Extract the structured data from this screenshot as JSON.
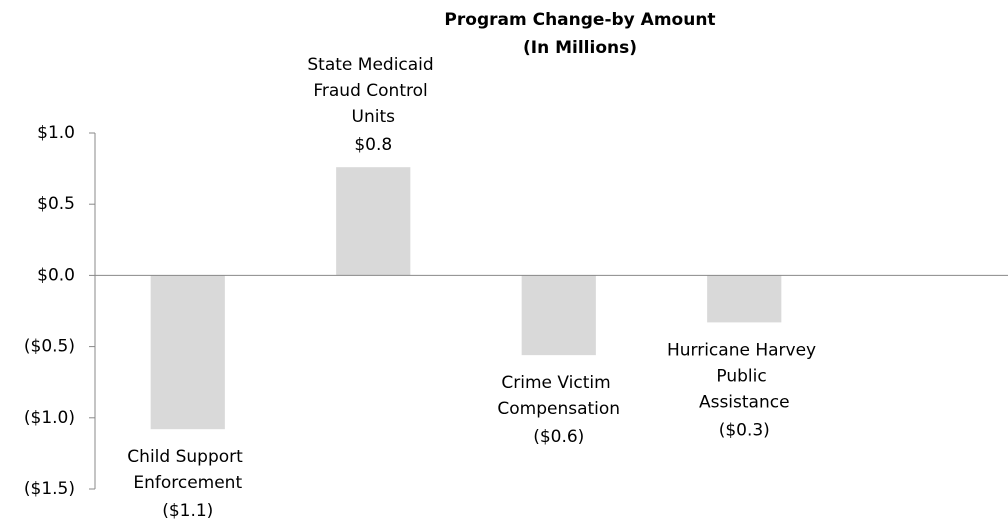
{
  "chart_data": {
    "type": "bar",
    "title": "Program Change-by Amount",
    "subtitle": "(In Millions)",
    "categories": [
      "Child Support Enforcement",
      "State Medicaid Fraud Control Units",
      "Crime Victim Compensation",
      "Hurricane Harvey Public Assistance"
    ],
    "values": [
      -1.08,
      0.76,
      -0.56,
      -0.33
    ],
    "value_labels": [
      "($1.1)",
      "$0.8",
      "($0.6)",
      "($0.3)"
    ],
    "color": "#d9d9d9",
    "ylim": [
      -1.5,
      1.0
    ],
    "yticks": [
      {
        "value": -1.5,
        "label": "($1.5)"
      },
      {
        "value": -1.0,
        "label": "($1.0)"
      },
      {
        "value": -0.5,
        "label": "($0.5)"
      },
      {
        "value": 0,
        "label": "$0.0"
      },
      {
        "value": 0.5,
        "label": "$0.5"
      },
      {
        "value": 1.0,
        "label": "$1.0"
      }
    ],
    "grid": false
  }
}
